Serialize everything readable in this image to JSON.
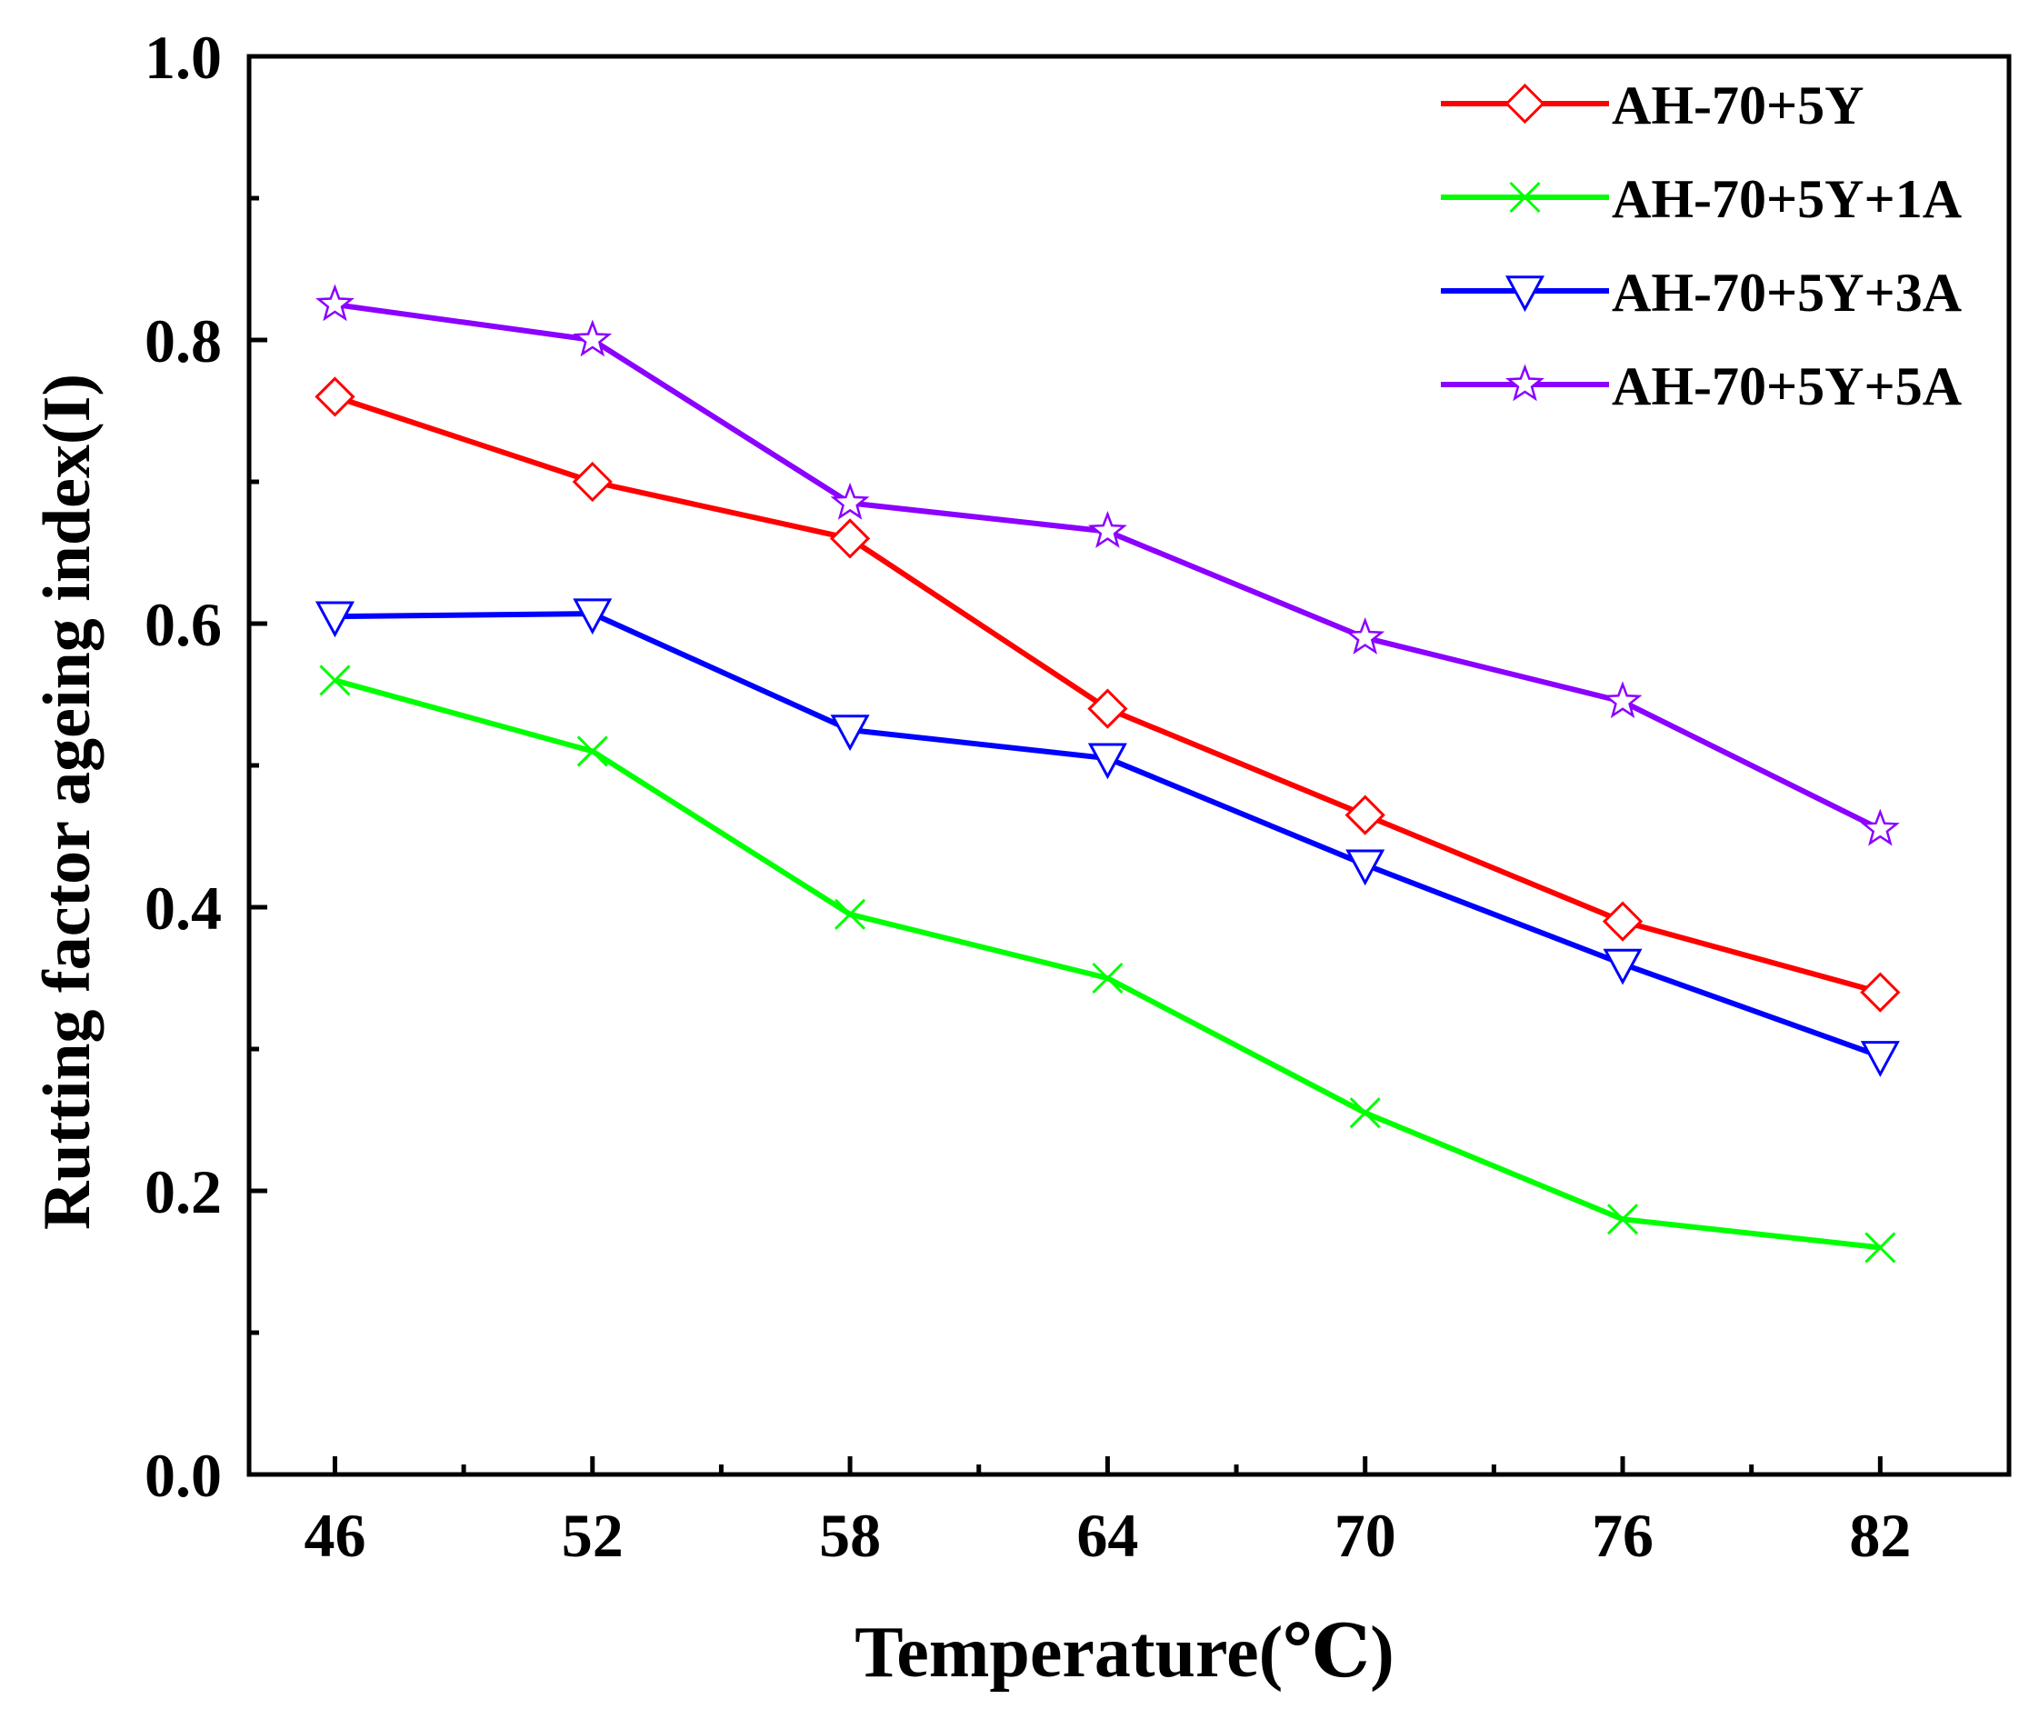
{
  "chart_data": {
    "type": "line",
    "title": "",
    "xlabel": "Temperature(℃)",
    "ylabel": "Rutting factor ageing index(I)",
    "x": [
      46,
      52,
      58,
      64,
      70,
      76,
      82
    ],
    "xlim": [
      44,
      85
    ],
    "ylim": [
      0.0,
      1.0
    ],
    "x_ticks": [
      "46",
      "52",
      "58",
      "64",
      "70",
      "76",
      "82"
    ],
    "y_ticks": [
      "0.0",
      "0.2",
      "0.4",
      "0.6",
      "0.8",
      "1.0"
    ],
    "legend_position": "top-right",
    "grid": false,
    "series": [
      {
        "name": "AH-70+5Y",
        "color": "#ff0000",
        "marker": "diamond",
        "values": [
          0.76,
          0.7,
          0.66,
          0.54,
          0.465,
          0.39,
          0.34
        ]
      },
      {
        "name": "AH-70+5Y+1A",
        "color": "#00ff00",
        "marker": "x",
        "values": [
          0.56,
          0.51,
          0.395,
          0.35,
          0.255,
          0.18,
          0.16
        ]
      },
      {
        "name": "AH-70+5Y+3A",
        "color": "#0000ff",
        "marker": "triangle-down",
        "values": [
          0.605,
          0.607,
          0.525,
          0.505,
          0.43,
          0.36,
          0.295
        ]
      },
      {
        "name": "AH-70+5Y+5A",
        "color": "#8b00ff",
        "marker": "star",
        "values": [
          0.825,
          0.8,
          0.685,
          0.665,
          0.59,
          0.545,
          0.455
        ]
      }
    ]
  }
}
